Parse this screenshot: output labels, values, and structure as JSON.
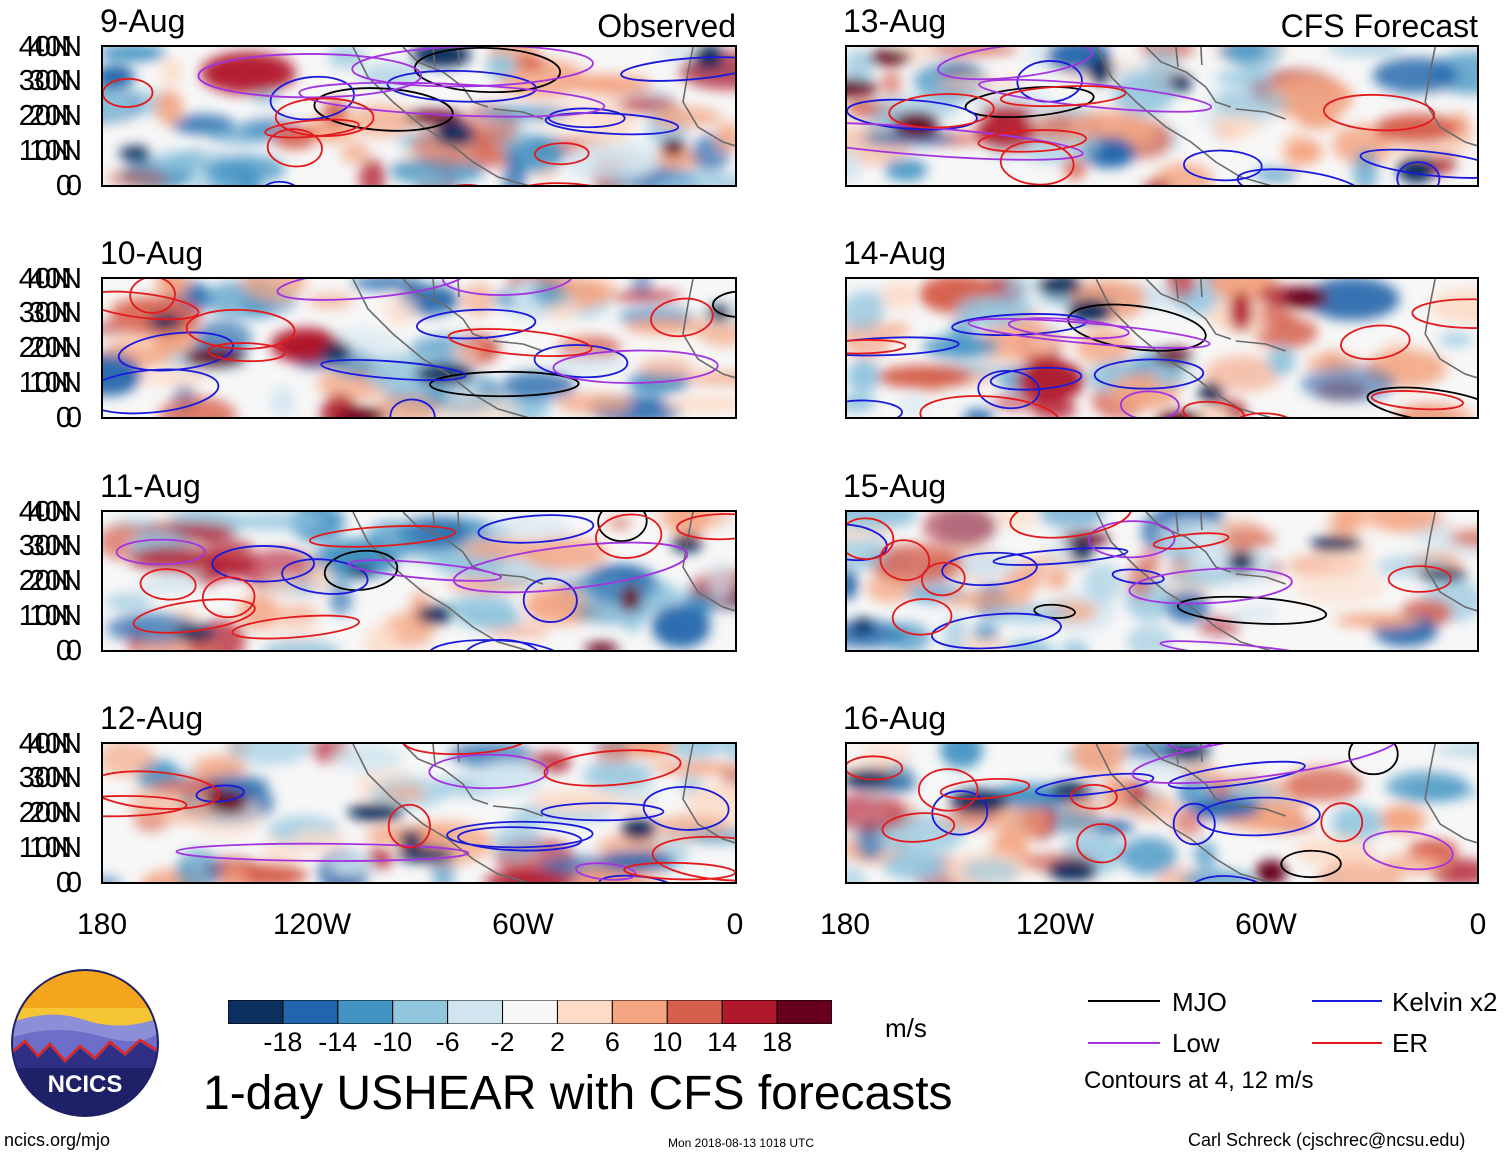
{
  "figure": {
    "title": "1-day USHEAR with CFS forecasts",
    "left_column_label": "Observed",
    "right_column_label": "CFS Forecast",
    "units": "m/s",
    "contour_note": "Contours at 4, 12 m/s",
    "source_url": "ncics.org/mjo",
    "timestamp": "Mon 2018-08-13 1018 UTC",
    "author": "Carl Schreck (cjschrec@ncsu.edu)",
    "logo_text": "NCICS"
  },
  "axes": {
    "lat_labels": [
      "40N",
      "30N",
      "20N",
      "10N",
      "0"
    ],
    "lon_labels": [
      "180",
      "120W",
      "60W",
      "0"
    ]
  },
  "panels": {
    "observed": [
      {
        "date": "9-Aug"
      },
      {
        "date": "10-Aug"
      },
      {
        "date": "11-Aug"
      },
      {
        "date": "12-Aug"
      }
    ],
    "forecast": [
      {
        "date": "13-Aug"
      },
      {
        "date": "14-Aug"
      },
      {
        "date": "15-Aug"
      },
      {
        "date": "16-Aug"
      }
    ]
  },
  "colorbar": {
    "ticks": [
      "-18",
      "-14",
      "-10",
      "-6",
      "-2",
      "2",
      "6",
      "10",
      "14",
      "18"
    ],
    "colors": [
      "#0b2f5e",
      "#2166ac",
      "#4393c3",
      "#92c5de",
      "#d1e5f0",
      "#f7f7f7",
      "#fddbc7",
      "#f4a582",
      "#d6604d",
      "#b2182b",
      "#67001f"
    ]
  },
  "legend": {
    "items": [
      {
        "label": "MJO",
        "color": "#000000"
      },
      {
        "label": "Kelvin x2",
        "color": "#1a1adb"
      },
      {
        "label": "Low",
        "color": "#a333e0"
      },
      {
        "label": "ER",
        "color": "#e31a1c"
      }
    ]
  }
}
